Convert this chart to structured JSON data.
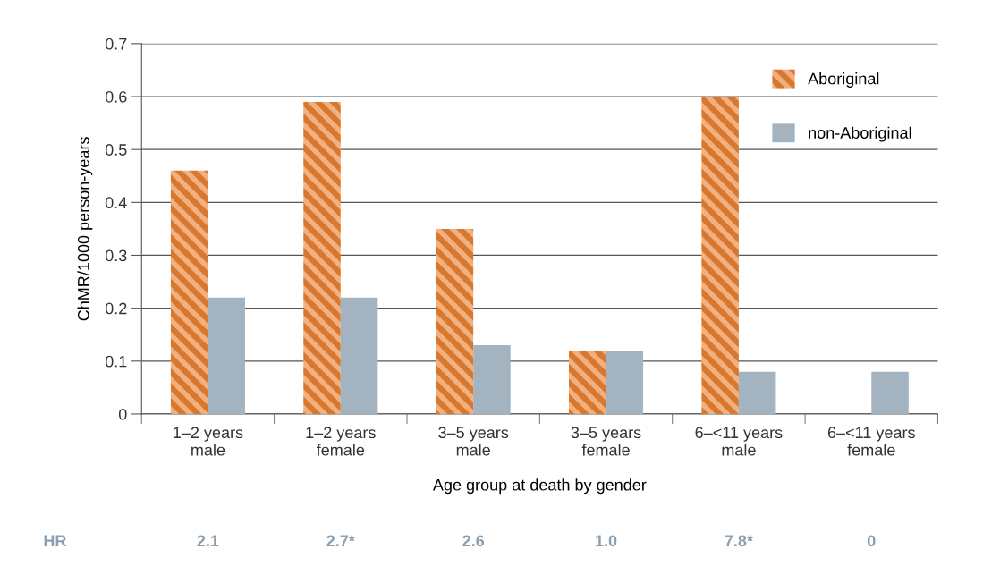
{
  "chart_data": {
    "type": "bar",
    "xlabel": "Age group at death by gender",
    "ylabel": "ChMR/1000 person-years",
    "categories": [
      "1–2 years\nmale",
      "1–2 years\nfemale",
      "3–5 years\nmale",
      "3–5 years\nfemale",
      "6–<11 years\nmale",
      "6–<11 years\nfemale"
    ],
    "series": [
      {
        "name": "Aboriginal",
        "color": "#d8772e",
        "values": [
          0.46,
          0.59,
          0.35,
          0.12,
          0.6,
          0
        ]
      },
      {
        "name": "non-Aboriginal",
        "color": "#a3b3bf",
        "values": [
          0.22,
          0.22,
          0.13,
          0.12,
          0.08,
          0.08
        ]
      }
    ],
    "ylim": [
      0,
      0.7
    ],
    "yticks": [
      0,
      0.1,
      0.2,
      0.3,
      0.4,
      0.5,
      0.6,
      0.7
    ],
    "grid": "y",
    "legend": "top right",
    "annotations": [
      "HR",
      "2.1",
      "2.7*",
      "2.6",
      "1.0",
      "7.8*",
      "0"
    ]
  }
}
